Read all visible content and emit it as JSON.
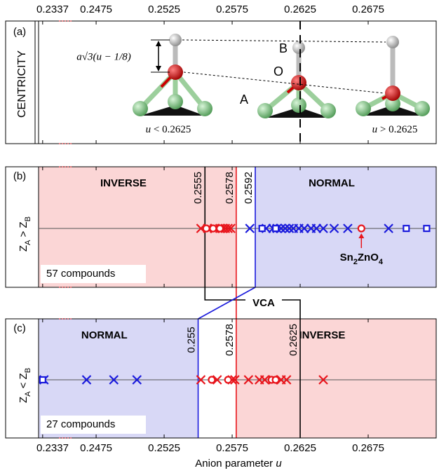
{
  "axis": {
    "xlabel": [
      {
        "text": "Anion parameter "
      },
      {
        "text": "u",
        "italic": true
      }
    ],
    "xlim": [
      0.2334,
      0.2725
    ],
    "xbreak": [
      0.2349,
      0.2458
    ],
    "xticks": [
      0.2337,
      0.2475,
      0.2525,
      0.2575,
      0.2625,
      0.2675
    ]
  },
  "panel_a": {
    "label": "(a)",
    "ylabel": "CENTRICITY",
    "formula": "a√3(u − 1/8)",
    "atom_labels": [
      "B",
      "O",
      "A"
    ],
    "left_caption": [
      {
        "text": "u",
        "italic": true
      },
      {
        "text": " < 0.2625"
      }
    ],
    "right_caption": [
      {
        "text": "u",
        "italic": true
      },
      {
        "text": " > 0.2625"
      }
    ],
    "center_line": 0.2625
  },
  "vca_label": "VCA",
  "chart_data": [
    {
      "type": "strip",
      "panel_label": "(b)",
      "ylabel": [
        {
          "text": "Z"
        },
        {
          "text": "A",
          "sub": true
        },
        {
          "text": " > Z"
        },
        {
          "text": "B",
          "sub": true
        }
      ],
      "count_label": "57 compounds",
      "regions": [
        {
          "label": "INVERSE",
          "fill": "#fbd6d6",
          "color": "#e8141b",
          "xrange": [
            0.2334,
            0.2578
          ]
        },
        {
          "label": "NORMAL",
          "fill": "#d8d8f6",
          "color": "#1a1adc",
          "xrange": [
            0.2592,
            0.2725
          ]
        }
      ],
      "lines": [
        {
          "value": 0.2555,
          "color": "#000000"
        },
        {
          "value": 0.2578,
          "color": "#e8141b"
        },
        {
          "value": 0.2592,
          "color": "#1a1adc"
        }
      ],
      "series": [
        {
          "marker": "x",
          "color": "#e8141b",
          "values": [
            0.2552,
            0.2557,
            0.2562,
            0.2566,
            0.2568,
            0.257,
            0.2572,
            0.2574
          ]
        },
        {
          "marker": "circle",
          "color": "#e8141b",
          "values": [
            0.2556,
            0.2561,
            0.2566,
            0.267
          ]
        },
        {
          "marker": "x",
          "color": "#1a1adc",
          "values": [
            0.2588,
            0.26,
            0.2605,
            0.2608,
            0.2611,
            0.2614,
            0.2617,
            0.262,
            0.2624,
            0.2628,
            0.2633,
            0.2637,
            0.2642,
            0.265,
            0.266,
            0.269
          ]
        },
        {
          "marker": "square",
          "color": "#1a1adc",
          "values": [
            0.2597,
            0.2607,
            0.2703,
            0.2718
          ]
        }
      ],
      "annotation": {
        "parts": [
          {
            "text": "Sn"
          },
          {
            "text": "2",
            "sub": true
          },
          {
            "text": "ZnO"
          },
          {
            "text": "4",
            "sub": true
          }
        ],
        "value": 0.267,
        "color": "#e8141b"
      }
    },
    {
      "type": "strip",
      "panel_label": "(c)",
      "ylabel": [
        {
          "text": "Z"
        },
        {
          "text": "A",
          "sub": true
        },
        {
          "text": " < Z"
        },
        {
          "text": "B",
          "sub": true
        }
      ],
      "count_label": "27 compounds",
      "regions": [
        {
          "label": "NORMAL",
          "fill": "#d8d8f6",
          "color": "#1a1adc",
          "xrange": [
            0.2334,
            0.255
          ]
        },
        {
          "label": "INVERSE",
          "fill": "#fbd6d6",
          "color": "#e8141b",
          "xrange": [
            0.2578,
            0.2725
          ]
        }
      ],
      "lines": [
        {
          "value": 0.255,
          "color": "#1a1adc"
        },
        {
          "value": 0.2578,
          "color": "#e8141b"
        },
        {
          "value": 0.2625,
          "color": "#000000"
        }
      ],
      "series": [
        {
          "marker": "x",
          "color": "#1a1adc",
          "values": [
            0.2338,
            0.2468,
            0.2488,
            0.2505
          ]
        },
        {
          "marker": "square",
          "color": "#1a1adc",
          "values": [
            0.2337
          ]
        },
        {
          "marker": "x",
          "color": "#e8141b",
          "values": [
            0.2552,
            0.2564,
            0.2575,
            0.2577,
            0.2587,
            0.2595,
            0.2599,
            0.2605,
            0.2611,
            0.2615,
            0.2642
          ]
        },
        {
          "marker": "circle",
          "color": "#e8141b",
          "values": [
            0.256,
            0.2572,
            0.2604,
            0.2607
          ]
        }
      ]
    }
  ]
}
